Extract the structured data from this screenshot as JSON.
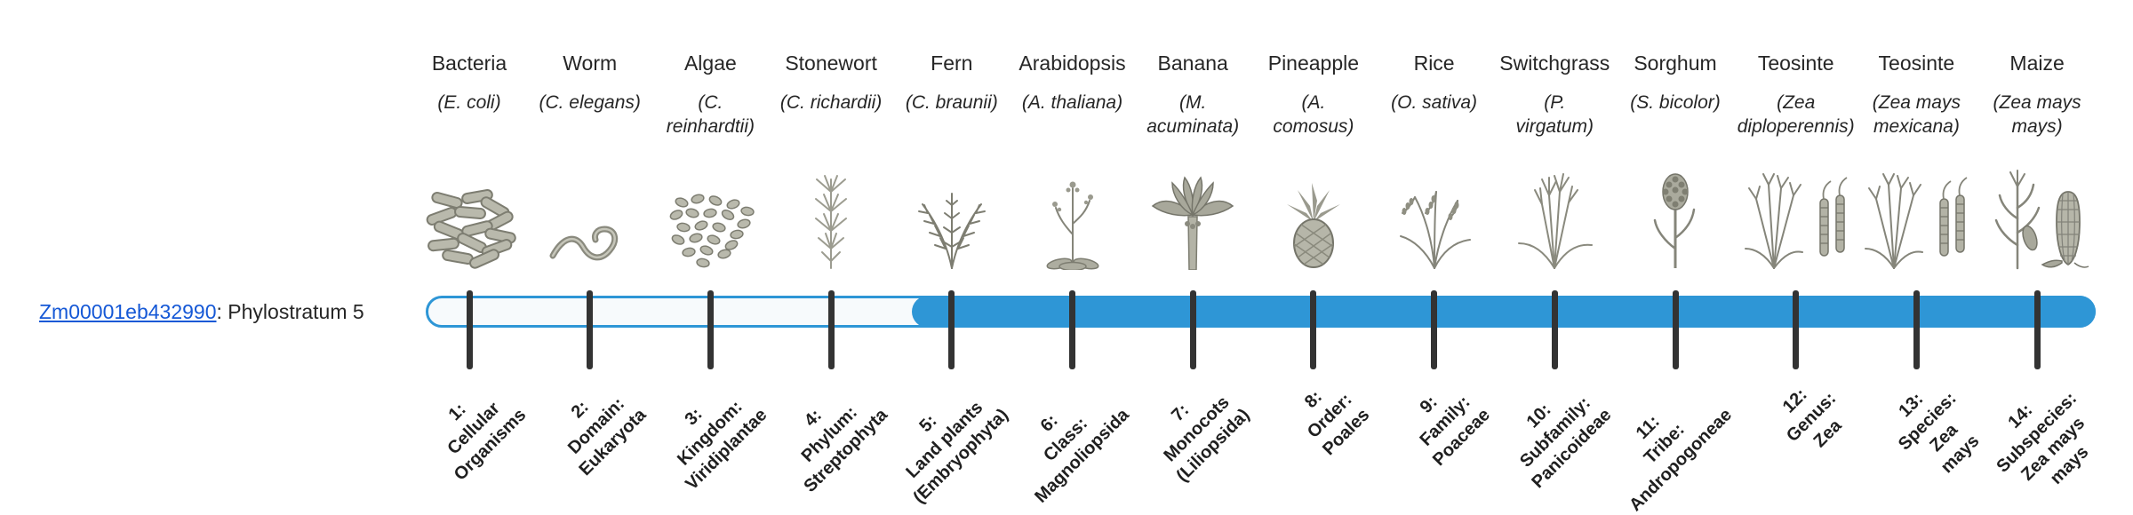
{
  "page": {
    "background": "#ffffff"
  },
  "gene": {
    "id": "Zm00001eb432990",
    "suffix": ": Phylostratum 5",
    "phylostratum": 5,
    "link_color": "#1558d6"
  },
  "timeline": {
    "bar_color": "#2e96d6",
    "track_fill": "#f7fafc",
    "tick_color": "#333333",
    "filled_from_stratum": 5,
    "total_strata": 14
  },
  "strata": [
    {
      "index": 1,
      "common_name": "Bacteria",
      "scientific_lines": [
        "(E. coli)"
      ],
      "icon": "bacteria-icon",
      "label_lines": [
        "1:",
        "Cellular",
        "Organisms"
      ]
    },
    {
      "index": 2,
      "common_name": "Worm",
      "scientific_lines": [
        "(C. elegans)"
      ],
      "icon": "worm-icon",
      "label_lines": [
        "2:",
        "Domain:",
        "Eukaryota"
      ]
    },
    {
      "index": 3,
      "common_name": "Algae",
      "scientific_lines": [
        "(C.",
        "reinhardtii)"
      ],
      "icon": "algae-icon",
      "label_lines": [
        "3:",
        "Kingdom:",
        "Viridiplantae"
      ]
    },
    {
      "index": 4,
      "common_name": "Stonewort",
      "scientific_lines": [
        "(C. richardii)"
      ],
      "icon": "stonewort-icon",
      "label_lines": [
        "4:",
        "Phylum:",
        "Streptophyta"
      ]
    },
    {
      "index": 5,
      "common_name": "Fern",
      "scientific_lines": [
        "(C. braunii)"
      ],
      "icon": "fern-icon",
      "label_lines": [
        "5:",
        "Land plants",
        "(Embryophyta)"
      ]
    },
    {
      "index": 6,
      "common_name": "Arabidopsis",
      "scientific_lines": [
        "(A. thaliana)"
      ],
      "icon": "arabidopsis-icon",
      "label_lines": [
        "6:",
        "Class:",
        "Magnoliopsida"
      ]
    },
    {
      "index": 7,
      "common_name": "Banana",
      "scientific_lines": [
        "(M.",
        "acuminata)"
      ],
      "icon": "banana-icon",
      "label_lines": [
        "7:",
        "Monocots",
        "(Liliopsida)"
      ]
    },
    {
      "index": 8,
      "common_name": "Pineapple",
      "scientific_lines": [
        "(A.",
        "comosus)"
      ],
      "icon": "pineapple-icon",
      "label_lines": [
        "8:",
        "Order:",
        "Poales"
      ]
    },
    {
      "index": 9,
      "common_name": "Rice",
      "scientific_lines": [
        "(O. sativa)"
      ],
      "icon": "rice-icon",
      "label_lines": [
        "9:",
        "Family:",
        "Poaceae"
      ]
    },
    {
      "index": 10,
      "common_name": "Switchgrass",
      "scientific_lines": [
        "(P.",
        "virgatum)"
      ],
      "icon": "switchgrass-icon",
      "label_lines": [
        "10:",
        "Subfamily:",
        "Panicoideae"
      ]
    },
    {
      "index": 11,
      "common_name": "Sorghum",
      "scientific_lines": [
        "(S. bicolor)"
      ],
      "icon": "sorghum-icon",
      "label_lines": [
        "11:",
        "Tribe:",
        "Andropogoneae"
      ]
    },
    {
      "index": 12,
      "common_name": "Teosinte",
      "scientific_lines": [
        "(Zea",
        "diploperennis)"
      ],
      "icon": "teosinte-icon",
      "label_lines": [
        "12:",
        "Genus:",
        "Zea"
      ]
    },
    {
      "index": 13,
      "common_name": "Teosinte",
      "scientific_lines": [
        "(Zea mays",
        "mexicana)"
      ],
      "icon": "teosinte-icon",
      "label_lines": [
        "13:",
        "Species:",
        "Zea",
        "mays"
      ]
    },
    {
      "index": 14,
      "common_name": "Maize",
      "scientific_lines": [
        "(Zea mays",
        "mays)"
      ],
      "icon": "maize-icon",
      "label_lines": [
        "14:",
        "Subspecies:",
        "Zea mays",
        "mays"
      ]
    }
  ]
}
